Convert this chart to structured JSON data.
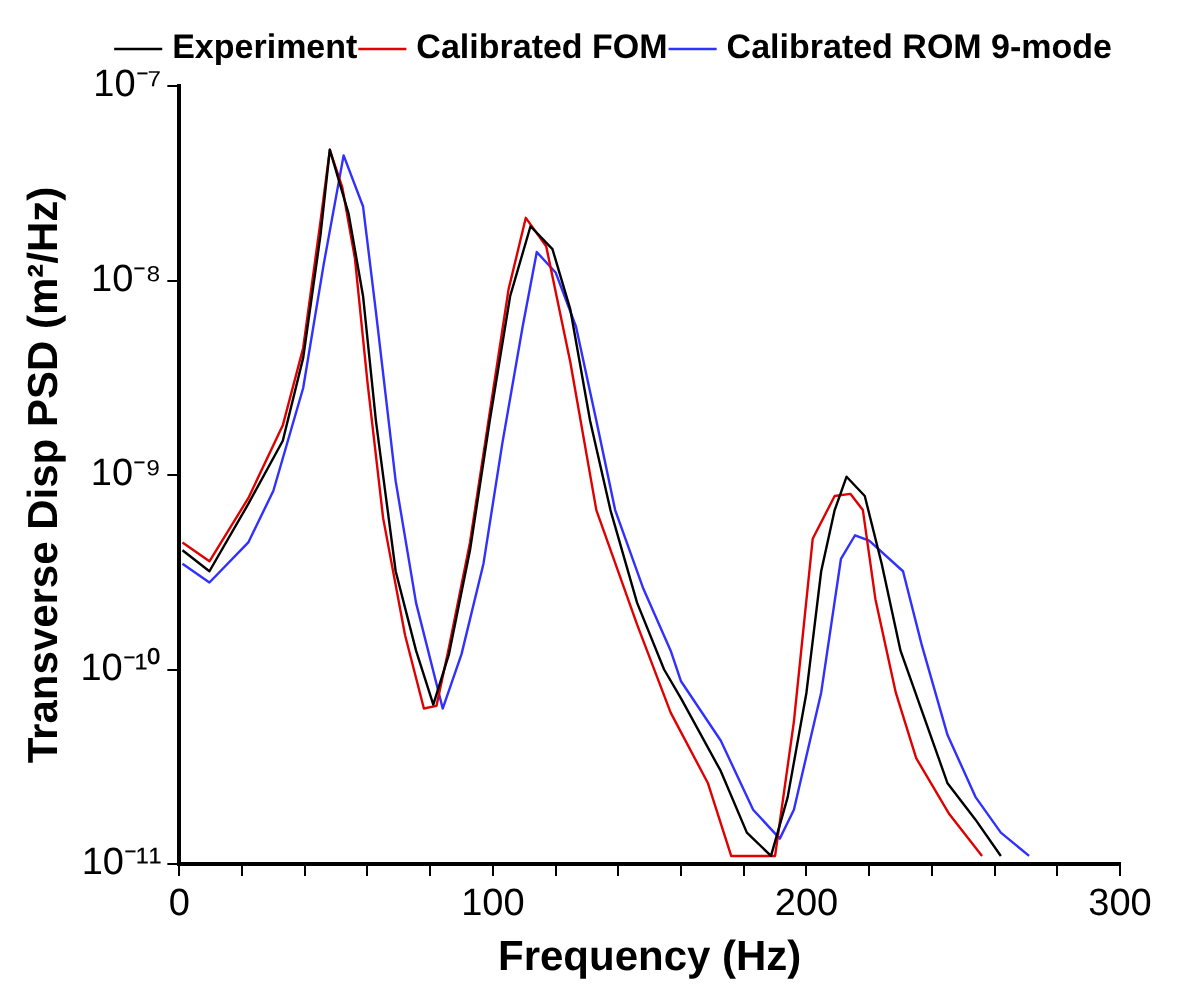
{
  "chart_data": {
    "type": "line",
    "xlabel": "Frequency (Hz)",
    "ylabel": "Transverse Disp PSD (m²/Hz)",
    "log": "y",
    "grid": false,
    "legend": "top right",
    "marker": "none",
    "line_style": "solid",
    "xlim": [
      0,
      300
    ],
    "xticks": [
      0,
      {
        "value": 20,
        "label": null
      },
      {
        "value": 40,
        "label": null
      },
      {
        "value": 60,
        "label": null
      },
      {
        "value": 80,
        "label": null
      },
      100,
      {
        "value": 120,
        "label": null
      },
      {
        "value": 140,
        "label": null
      },
      {
        "value": 160,
        "label": null
      },
      {
        "value": 180,
        "label": null
      },
      200,
      {
        "value": 220,
        "label": null
      },
      {
        "value": 240,
        "label": null
      },
      {
        "value": 260,
        "label": null
      },
      {
        "value": 280,
        "label": null
      },
      300
    ],
    "ylim": [
      1e-11,
      1e-07
    ],
    "yticks": [
      {
        "value": 1e-11,
        "label": "10⁻¹¹"
      },
      {
        "value": 1e-10,
        "label": "10⁻¹⁰"
      },
      {
        "value": 1e-09,
        "label": "10⁻⁹"
      },
      {
        "value": 1e-08,
        "label": "10⁻⁸"
      },
      {
        "value": 1e-07,
        "label": "10⁻⁷"
      }
    ],
    "series": [
      {
        "name": "Experiment",
        "color": "#000000",
        "x": [
          1,
          9.6,
          22,
          33,
          39.5,
          45,
          48,
          54,
          58.6,
          62.7,
          69,
          75.5,
          81,
          86,
          92.7,
          99,
          105.5,
          112,
          119,
          124.7,
          131,
          137.5,
          146,
          154.6,
          160,
          172.7,
          181,
          188.7,
          194,
          200,
          204.7,
          209,
          212.8,
          218.6,
          224,
          230,
          236.7,
          245,
          253.8,
          262
        ],
        "values": [
          4.1e-10,
          3.2e-10,
          7.1e-10,
          1.5e-09,
          4e-09,
          1.7e-08,
          4.7e-08,
          2.2e-08,
          8.3e-09,
          1.9e-09,
          3.2e-10,
          1.25e-10,
          6.6e-11,
          1.2e-10,
          4.1e-10,
          1.9e-09,
          8.3e-09,
          1.9e-08,
          1.45e-08,
          7.1e-09,
          1.9e-09,
          6.6e-10,
          2.2e-10,
          1e-10,
          7.1e-11,
          3e-11,
          1.45e-11,
          1.1e-11,
          2.2e-11,
          7.6e-11,
          3.2e-10,
          6.6e-10,
          9.8e-10,
          7.8e-10,
          3.5e-10,
          1.25e-10,
          6.2e-11,
          2.6e-11,
          1.7e-11,
          1.1e-11
        ]
      },
      {
        "name": "Calibrated FOM",
        "color": "#e00000",
        "x": [
          1,
          9.6,
          22,
          33,
          39.5,
          45,
          48,
          52,
          56,
          60,
          65,
          72,
          78,
          82,
          86,
          92.7,
          99,
          105,
          110.5,
          117,
          124.7,
          133,
          146,
          156.7,
          168.6,
          176,
          190,
          196,
          202,
          209,
          214,
          218,
          222,
          228.5,
          235,
          245.6,
          256
        ],
        "values": [
          4.5e-10,
          3.6e-10,
          7.6e-10,
          1.8e-09,
          4.5e-09,
          2e-08,
          4.7e-08,
          3e-08,
          1.3e-08,
          3e-09,
          6e-10,
          1.5e-10,
          6.3e-11,
          6.5e-11,
          1.3e-10,
          4.5e-10,
          2.1e-09,
          9e-09,
          2.1e-08,
          1.5e-08,
          3.8e-09,
          6.6e-10,
          1.7e-10,
          6e-11,
          2.6e-11,
          1.1e-11,
          1.1e-11,
          5.4e-11,
          4.7e-10,
          7.8e-10,
          8e-10,
          6.6e-10,
          2.3e-10,
          7.6e-11,
          3.5e-11,
          1.8e-11,
          1.1e-11
        ]
      },
      {
        "name": "Calibrated ROM 9-mode",
        "color": "#3030ff",
        "x": [
          1,
          9.6,
          22,
          30,
          39.5,
          46,
          52.4,
          58.6,
          62.7,
          69,
          75.5,
          84,
          90,
          97,
          103,
          109.5,
          114,
          120,
          126.5,
          133,
          139,
          148,
          156.7,
          160,
          172.7,
          183,
          191.5,
          196,
          204.7,
          211,
          215.5,
          220,
          230.8,
          236.7,
          245,
          254,
          262,
          271
        ],
        "values": [
          3.5e-10,
          2.8e-10,
          4.5e-10,
          8.3e-10,
          2.8e-09,
          1.2e-08,
          4.4e-08,
          2.4e-08,
          6.9e-09,
          9.3e-10,
          2.2e-10,
          6.3e-11,
          1.2e-10,
          3.5e-10,
          1.45e-09,
          5.8e-09,
          1.4e-08,
          1.1e-08,
          5.8e-09,
          1.9e-09,
          6.6e-10,
          2.6e-10,
          1.25e-10,
          8.7e-11,
          4.3e-11,
          1.9e-11,
          1.35e-11,
          1.9e-11,
          7.6e-11,
          3.7e-10,
          4.9e-10,
          4.6e-10,
          3.2e-10,
          1.35e-10,
          4.6e-11,
          2.2e-11,
          1.45e-11,
          1.1e-11
        ]
      }
    ]
  }
}
